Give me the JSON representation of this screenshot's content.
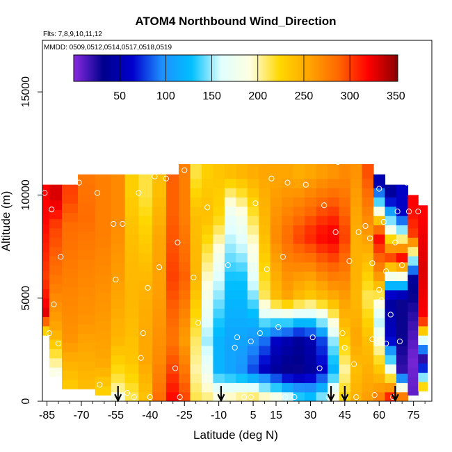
{
  "chart_data": {
    "type": "heatmap",
    "title": "ATOM4 Northbound Wind_Direction",
    "notes": [
      "Flts: 7,8,9,10,11,12",
      "MMDD: 0509,0512,0514,0517,0518,0519"
    ],
    "xlabel": "Latitude (deg N)",
    "ylabel": "Altitude (m)",
    "xlim": [
      -87,
      83
    ],
    "ylim": [
      0,
      17500
    ],
    "x_ticks": [
      -85,
      -70,
      -55,
      -40,
      -25,
      -10,
      5,
      15,
      30,
      45,
      60,
      75
    ],
    "y_ticks": [
      0,
      5000,
      10000,
      15000
    ],
    "colorbar": {
      "range": [
        0,
        352
      ],
      "ticks": [
        50,
        100,
        150,
        200,
        250,
        300,
        350
      ],
      "stops": [
        "#8a2be2",
        "#00008b",
        "#0000cd",
        "#1e90ff",
        "#00bfff",
        "#e0ffff",
        "#ffffe0",
        "#ffd700",
        "#ffa500",
        "#ff6600",
        "#ff0000",
        "#8b0000"
      ]
    },
    "profile_markers": [
      -54,
      -9,
      39,
      45,
      67
    ],
    "columns": [
      {
        "lat": -86,
        "top": 10500,
        "bottom": 3200,
        "layers": [
          [
            3200,
            200
          ],
          [
            4200,
            330
          ],
          [
            6000,
            300
          ],
          [
            9000,
            320
          ]
        ]
      },
      {
        "lat": -82,
        "top": 10500,
        "bottom": 1200,
        "layers": [
          [
            1200,
            180
          ],
          [
            3500,
            255
          ],
          [
            6500,
            285
          ],
          [
            8500,
            300
          ],
          [
            9800,
            330
          ]
        ]
      },
      {
        "lat": -75,
        "top": 10500,
        "bottom": 600,
        "layers": [
          [
            600,
            230
          ],
          [
            3000,
            265
          ],
          [
            6000,
            275
          ],
          [
            8500,
            285
          ],
          [
            10000,
            300
          ]
        ]
      },
      {
        "lat": -68,
        "top": 11000,
        "bottom": 600,
        "layers": [
          [
            600,
            240
          ],
          [
            4000,
            265
          ],
          [
            7000,
            275
          ],
          [
            9000,
            285
          ],
          [
            10500,
            280
          ]
        ]
      },
      {
        "lat": -60,
        "top": 11000,
        "bottom": 300,
        "layers": [
          [
            300,
            225
          ],
          [
            2000,
            255
          ],
          [
            5000,
            265
          ],
          [
            8000,
            275
          ],
          [
            10500,
            275
          ]
        ]
      },
      {
        "lat": -54,
        "top": 11000,
        "bottom": 0,
        "layers": [
          [
            0,
            170
          ],
          [
            800,
            210
          ],
          [
            3000,
            245
          ],
          [
            6000,
            260
          ],
          [
            9000,
            270
          ]
        ]
      },
      {
        "lat": -48,
        "top": 11000,
        "bottom": 0,
        "layers": [
          [
            0,
            210
          ],
          [
            2000,
            235
          ],
          [
            5000,
            245
          ],
          [
            8000,
            240
          ],
          [
            10000,
            230
          ]
        ]
      },
      {
        "lat": -42,
        "top": 11000,
        "bottom": 0,
        "layers": [
          [
            0,
            235
          ],
          [
            2000,
            255
          ],
          [
            5000,
            250
          ],
          [
            8000,
            230
          ],
          [
            10000,
            215
          ]
        ]
      },
      {
        "lat": -36,
        "top": 11000,
        "bottom": 0,
        "layers": [
          [
            0,
            285
          ],
          [
            2000,
            270
          ],
          [
            5000,
            260
          ],
          [
            8000,
            255
          ],
          [
            10000,
            240
          ]
        ]
      },
      {
        "lat": -30,
        "top": 11000,
        "bottom": 0,
        "layers": [
          [
            0,
            320
          ],
          [
            1500,
            300
          ],
          [
            3000,
            280
          ],
          [
            6000,
            300
          ],
          [
            9000,
            290
          ]
        ]
      },
      {
        "lat": -25,
        "top": 11500,
        "bottom": 0,
        "layers": [
          [
            0,
            300
          ],
          [
            1500,
            280
          ],
          [
            3000,
            260
          ],
          [
            6000,
            290
          ],
          [
            9000,
            275
          ]
        ]
      },
      {
        "lat": -20,
        "top": 11500,
        "bottom": 0,
        "layers": [
          [
            0,
            215
          ],
          [
            1500,
            200
          ],
          [
            3000,
            210
          ],
          [
            6000,
            245
          ],
          [
            9000,
            240
          ],
          [
            11000,
            215
          ]
        ]
      },
      {
        "lat": -15,
        "top": 11500,
        "bottom": 0,
        "layers": [
          [
            0,
            210
          ],
          [
            1500,
            175
          ],
          [
            3000,
            150
          ],
          [
            6000,
            195
          ],
          [
            9000,
            240
          ],
          [
            11000,
            230
          ]
        ]
      },
      {
        "lat": -10,
        "top": 11500,
        "bottom": 0,
        "layers": [
          [
            0,
            200
          ],
          [
            1500,
            120
          ],
          [
            3000,
            120
          ],
          [
            6000,
            160
          ],
          [
            9000,
            225
          ],
          [
            11000,
            235
          ]
        ]
      },
      {
        "lat": -5,
        "top": 11500,
        "bottom": 0,
        "layers": [
          [
            0,
            210
          ],
          [
            1500,
            110
          ],
          [
            3000,
            110
          ],
          [
            6000,
            130
          ],
          [
            9000,
            170
          ],
          [
            11000,
            240
          ]
        ]
      },
      {
        "lat": 0,
        "top": 11500,
        "bottom": 0,
        "layers": [
          [
            0,
            220
          ],
          [
            1500,
            100
          ],
          [
            3000,
            110
          ],
          [
            6000,
            130
          ],
          [
            9000,
            185
          ],
          [
            11000,
            245
          ]
        ]
      },
      {
        "lat": 5,
        "top": 11500,
        "bottom": 0,
        "layers": [
          [
            0,
            230
          ],
          [
            1500,
            80
          ],
          [
            3000,
            100
          ],
          [
            6000,
            165
          ],
          [
            9000,
            215
          ],
          [
            11000,
            250
          ]
        ]
      },
      {
        "lat": 10,
        "top": 11500,
        "bottom": 0,
        "layers": [
          [
            0,
            220
          ],
          [
            1500,
            55
          ],
          [
            3000,
            90
          ],
          [
            5000,
            210
          ],
          [
            8000,
            240
          ],
          [
            11000,
            255
          ]
        ]
      },
      {
        "lat": 15,
        "top": 11500,
        "bottom": 0,
        "layers": [
          [
            0,
            210
          ],
          [
            1500,
            40
          ],
          [
            3000,
            60
          ],
          [
            5000,
            240
          ],
          [
            8000,
            270
          ],
          [
            11000,
            255
          ]
        ]
      },
      {
        "lat": 20,
        "top": 11500,
        "bottom": 0,
        "layers": [
          [
            0,
            180
          ],
          [
            1500,
            30
          ],
          [
            3000,
            50
          ],
          [
            5000,
            255
          ],
          [
            8000,
            285
          ],
          [
            11000,
            255
          ]
        ]
      },
      {
        "lat": 25,
        "top": 11500,
        "bottom": 0,
        "layers": [
          [
            0,
            150
          ],
          [
            1500,
            30
          ],
          [
            3000,
            40
          ],
          [
            5000,
            240
          ],
          [
            8000,
            300
          ],
          [
            11000,
            250
          ]
        ]
      },
      {
        "lat": 30,
        "top": 11500,
        "bottom": 0,
        "layers": [
          [
            0,
            140
          ],
          [
            1500,
            40
          ],
          [
            3000,
            50
          ],
          [
            5000,
            230
          ],
          [
            8000,
            310
          ],
          [
            11000,
            255
          ]
        ]
      },
      {
        "lat": 35,
        "top": 11500,
        "bottom": 0,
        "layers": [
          [
            0,
            160
          ],
          [
            1500,
            60
          ],
          [
            3000,
            80
          ],
          [
            5000,
            240
          ],
          [
            8000,
            320
          ],
          [
            11000,
            260
          ]
        ]
      },
      {
        "lat": 40,
        "top": 11500,
        "bottom": 0,
        "layers": [
          [
            0,
            200
          ],
          [
            1500,
            120
          ],
          [
            3000,
            150
          ],
          [
            5000,
            250
          ],
          [
            8000,
            325
          ],
          [
            11000,
            265
          ]
        ]
      },
      {
        "lat": 45,
        "top": 11500,
        "bottom": 0,
        "layers": [
          [
            0,
            230
          ],
          [
            1500,
            200
          ],
          [
            3000,
            230
          ],
          [
            5000,
            260
          ],
          [
            8000,
            300
          ],
          [
            11000,
            270
          ]
        ]
      },
      {
        "lat": 50,
        "top": 11500,
        "bottom": 0,
        "layers": [
          [
            0,
            250
          ],
          [
            1500,
            240
          ],
          [
            3000,
            255
          ],
          [
            5000,
            245
          ],
          [
            8000,
            250
          ],
          [
            11000,
            265
          ]
        ]
      },
      {
        "lat": 55,
        "top": 11500,
        "bottom": 0,
        "layers": [
          [
            0,
            260
          ],
          [
            1500,
            250
          ],
          [
            3000,
            240
          ],
          [
            5000,
            210
          ],
          [
            8000,
            260
          ],
          [
            11000,
            295
          ]
        ]
      },
      {
        "lat": 60,
        "top": 11000,
        "bottom": 0,
        "layers": [
          [
            0,
            280
          ],
          [
            2000,
            220
          ],
          [
            4000,
            150
          ],
          [
            6000,
            260
          ],
          [
            8000,
            320
          ],
          [
            10500,
            50
          ]
        ]
      },
      {
        "lat": 65,
        "top": 10500,
        "bottom": 0,
        "layers": [
          [
            0,
            330
          ],
          [
            1500,
            180
          ],
          [
            3000,
            60
          ],
          [
            5000,
            40
          ],
          [
            7000,
            300
          ],
          [
            10000,
            40
          ]
        ]
      },
      {
        "lat": 70,
        "top": 10500,
        "bottom": 0,
        "layers": [
          [
            0,
            320
          ],
          [
            1500,
            20
          ],
          [
            3000,
            30
          ],
          [
            5000,
            30
          ],
          [
            7000,
            320
          ],
          [
            9000,
            60
          ]
        ]
      },
      {
        "lat": 75,
        "top": 10000,
        "bottom": 300,
        "layers": [
          [
            300,
            10
          ],
          [
            2000,
            5
          ],
          [
            4000,
            20
          ],
          [
            6000,
            40
          ],
          [
            8000,
            300
          ],
          [
            9500,
            320
          ]
        ]
      },
      {
        "lat": 79,
        "top": 9500,
        "bottom": 500,
        "layers": [
          [
            500,
            260
          ],
          [
            2000,
            10
          ],
          [
            4000,
            320
          ],
          [
            6500,
            330
          ],
          [
            9000,
            320
          ]
        ]
      }
    ],
    "obs_points": [
      [
        -86,
        10100
      ],
      [
        -84,
        3300
      ],
      [
        -83,
        9300
      ],
      [
        -82,
        4700
      ],
      [
        -80,
        2800
      ],
      [
        -80,
        1300
      ],
      [
        -79,
        7000
      ],
      [
        -71,
        10600
      ],
      [
        -63,
        10100
      ],
      [
        -62,
        800
      ],
      [
        -56,
        8600
      ],
      [
        -55,
        5900
      ],
      [
        -52,
        8600
      ],
      [
        -50,
        400
      ],
      [
        -47,
        200
      ],
      [
        -45,
        10100
      ],
      [
        -44,
        2100
      ],
      [
        -43,
        3300
      ],
      [
        -41,
        5500
      ],
      [
        -40,
        200
      ],
      [
        -38,
        10900
      ],
      [
        -36,
        6500
      ],
      [
        -33,
        10800
      ],
      [
        -29,
        1600
      ],
      [
        -28,
        7700
      ],
      [
        -27,
        200
      ],
      [
        -25,
        11200
      ],
      [
        -21,
        6000
      ],
      [
        -19,
        3800
      ],
      [
        -15,
        9400
      ],
      [
        -11,
        200
      ],
      [
        -8,
        200
      ],
      [
        -6,
        6600
      ],
      [
        -3,
        2600
      ],
      [
        -2,
        3100
      ],
      [
        1,
        200
      ],
      [
        4,
        2900
      ],
      [
        4,
        200
      ],
      [
        6,
        9600
      ],
      [
        8,
        3300
      ],
      [
        11,
        6400
      ],
      [
        13,
        10800
      ],
      [
        16,
        3600
      ],
      [
        18,
        7000
      ],
      [
        19,
        200
      ],
      [
        20,
        10600
      ],
      [
        23,
        200
      ],
      [
        28,
        10500
      ],
      [
        31,
        3100
      ],
      [
        34,
        1600
      ],
      [
        36,
        9500
      ],
      [
        38,
        200
      ],
      [
        41,
        8200
      ],
      [
        42,
        11600
      ],
      [
        44,
        3300
      ],
      [
        45,
        2600
      ],
      [
        45,
        200
      ],
      [
        47,
        6800
      ],
      [
        49,
        1800
      ],
      [
        50,
        200
      ],
      [
        51,
        8200
      ],
      [
        54,
        8500
      ],
      [
        56,
        7900
      ],
      [
        57,
        3000
      ],
      [
        57,
        6700
      ],
      [
        58,
        300
      ],
      [
        59,
        4800
      ],
      [
        60,
        5400
      ],
      [
        60,
        10300
      ],
      [
        61,
        4900
      ],
      [
        62,
        8700
      ],
      [
        63,
        2800
      ],
      [
        63,
        6300
      ],
      [
        65,
        4200
      ],
      [
        66,
        10800
      ],
      [
        66,
        200
      ],
      [
        67,
        7700
      ],
      [
        68,
        9200
      ],
      [
        69,
        2900
      ],
      [
        70,
        6600
      ],
      [
        72,
        10600
      ],
      [
        73,
        9200
      ],
      [
        77,
        9200
      ],
      [
        79,
        200
      ]
    ]
  }
}
